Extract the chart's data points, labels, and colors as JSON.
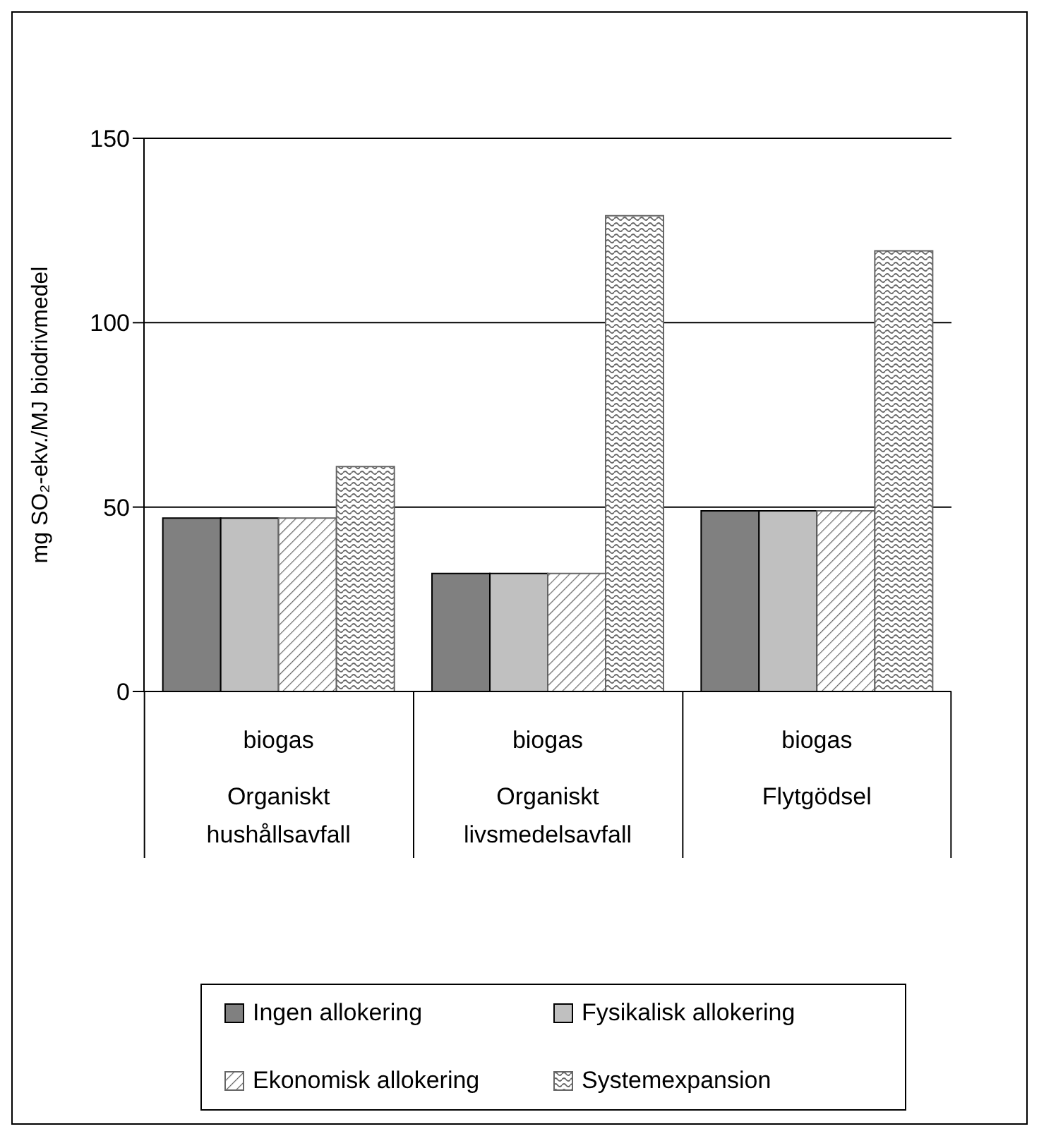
{
  "chart_data": {
    "type": "bar",
    "ylabel": "mg SO₂-ekv./MJ biodrivmedel",
    "categories": [
      "biogas\nOrganiskt hushållsavfall",
      "biogas\nOrganiskt livsmedelsavfall",
      "biogas\nFlytgödsel"
    ],
    "series": [
      {
        "name": "Ingen allokering",
        "color": "#808080",
        "values": [
          47,
          32,
          49
        ]
      },
      {
        "name": "Fysikalisk allokering",
        "color": "#c0c0c0",
        "values": [
          47,
          32,
          49
        ]
      },
      {
        "name": "Ekonomisk allokering",
        "color": "#666666",
        "values": [
          47,
          32,
          49
        ]
      },
      {
        "name": "Systemexpansion",
        "color": "#666666",
        "values": [
          61,
          129,
          119.5
        ]
      }
    ],
    "ylim": [
      0,
      150
    ],
    "yticks": [
      0,
      50,
      100,
      150
    ],
    "grid": "y",
    "legend": "bottom"
  }
}
